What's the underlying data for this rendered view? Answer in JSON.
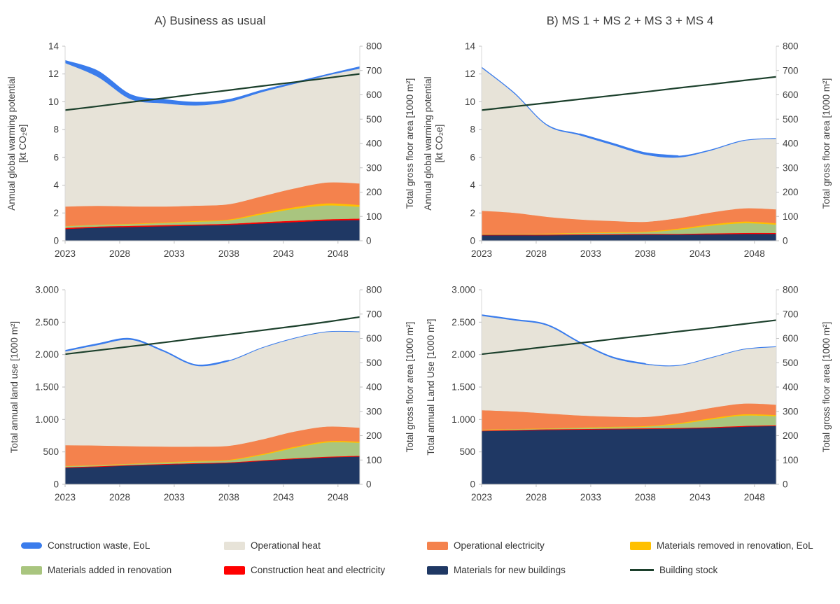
{
  "colors": {
    "text": "#404040",
    "axis": "#bfbfbf",
    "background": "#ffffff"
  },
  "legend": {
    "position": "bottom",
    "items": [
      {
        "label": "Construction waste, EoL",
        "color": "#3a7cec",
        "swatch": "pill"
      },
      {
        "label": "Operational heat",
        "color": "#e7e3d8",
        "swatch": "rect"
      },
      {
        "label": "Operational electricity",
        "color": "#f4824d",
        "swatch": "rect"
      },
      {
        "label": "Materials removed in renovation, EoL",
        "color": "#ffc000",
        "swatch": "rect"
      },
      {
        "label": "Materials added in renovation",
        "color": "#a9c57f",
        "swatch": "rect"
      },
      {
        "label": "Construction heat and electricity",
        "color": "#ff0000",
        "swatch": "rect"
      },
      {
        "label": "Materials for new buildings",
        "color": "#1f3864",
        "swatch": "rect"
      },
      {
        "label": "Building stock",
        "color": "#1c402c",
        "swatch": "line"
      }
    ]
  },
  "chart_data": [
    {
      "type": "area",
      "title": "A) Business as usual",
      "x": [
        2023,
        2026,
        2029,
        2032,
        2035,
        2038,
        2041,
        2044,
        2047,
        2050
      ],
      "xlim": [
        2023,
        2050
      ],
      "x_ticks": [
        2023,
        2028,
        2033,
        2038,
        2043,
        2048
      ],
      "ylabel_left_lines": [
        "Annual global warming potential",
        "[kt CO₂e]"
      ],
      "ylabel_right": "Total gross floor area [1000 m²]",
      "ylim_left": [
        0,
        14
      ],
      "ytick_step_left": 2,
      "ytick_format_left": "plain",
      "ylim_right": [
        0,
        800
      ],
      "ytick_step_right": 100,
      "grid": false,
      "stack_series": [
        {
          "name": "Materials for new buildings",
          "color": "#1f3864",
          "values": [
            0.85,
            0.95,
            1.0,
            1.05,
            1.1,
            1.15,
            1.25,
            1.35,
            1.45,
            1.5
          ]
        },
        {
          "name": "Construction heat and electricity",
          "color": "#ff0000",
          "values": [
            0.08,
            0.08,
            0.08,
            0.08,
            0.08,
            0.08,
            0.1,
            0.1,
            0.1,
            0.1
          ]
        },
        {
          "name": "Materials added in renovation",
          "color": "#a9c57f",
          "values": [
            0.12,
            0.12,
            0.12,
            0.15,
            0.2,
            0.25,
            0.55,
            0.85,
            1.0,
            0.85
          ]
        },
        {
          "name": "Materials removed in renovation, EoL",
          "color": "#ffc000",
          "values": [
            0.02,
            0.02,
            0.03,
            0.04,
            0.05,
            0.06,
            0.1,
            0.12,
            0.15,
            0.13
          ]
        },
        {
          "name": "Operational electricity",
          "color": "#f4824d",
          "values": [
            1.4,
            1.35,
            1.25,
            1.15,
            1.1,
            1.1,
            1.2,
            1.35,
            1.5,
            1.55
          ]
        },
        {
          "name": "Operational heat",
          "color": "#e7e3d8",
          "values": [
            10.33,
            9.28,
            7.72,
            7.43,
            7.22,
            7.36,
            7.5,
            7.53,
            7.7,
            8.27
          ]
        },
        {
          "name": "Construction waste, EoL",
          "color": "#3a7cec",
          "values": [
            0.15,
            0.4,
            0.3,
            0.25,
            0.2,
            0.15,
            0.1,
            0.08,
            0.05,
            0.1
          ],
          "stroke_top": true,
          "stroke_top_min": 0
        }
      ],
      "line_series": [
        {
          "name": "Building stock",
          "axis": "right",
          "color": "#1c402c",
          "values": [
            537,
            553,
            570,
            586,
            603,
            619,
            636,
            652,
            669,
            686
          ]
        }
      ]
    },
    {
      "type": "area",
      "title": "B) MS 1 + MS 2 + MS 3 + MS 4",
      "x": [
        2023,
        2026,
        2029,
        2032,
        2035,
        2038,
        2041,
        2044,
        2047,
        2050
      ],
      "xlim": [
        2023,
        2050
      ],
      "x_ticks": [
        2023,
        2028,
        2033,
        2038,
        2043,
        2048
      ],
      "ylabel_left_lines": [
        "Annual global warming potential",
        "[kt CO₂e]"
      ],
      "ylabel_right": "Total gross floor area [1000 m²]",
      "ylim_left": [
        0,
        14
      ],
      "ytick_step_left": 2,
      "ytick_format_left": "plain",
      "ylim_right": [
        0,
        800
      ],
      "ytick_step_right": 100,
      "grid": false,
      "stack_series": [
        {
          "name": "Materials for new buildings",
          "color": "#1f3864",
          "values": [
            0.4,
            0.4,
            0.4,
            0.42,
            0.43,
            0.45,
            0.45,
            0.47,
            0.5,
            0.5
          ]
        },
        {
          "name": "Construction heat and electricity",
          "color": "#ff0000",
          "values": [
            0.05,
            0.05,
            0.05,
            0.05,
            0.05,
            0.05,
            0.05,
            0.07,
            0.07,
            0.07
          ]
        },
        {
          "name": "Materials added in renovation",
          "color": "#a9c57f",
          "values": [
            0.05,
            0.05,
            0.05,
            0.08,
            0.1,
            0.12,
            0.3,
            0.55,
            0.7,
            0.6
          ]
        },
        {
          "name": "Materials removed in renovation, EoL",
          "color": "#ffc000",
          "values": [
            0.02,
            0.02,
            0.03,
            0.04,
            0.05,
            0.05,
            0.08,
            0.1,
            0.12,
            0.1
          ]
        },
        {
          "name": "Operational electricity",
          "color": "#f4824d",
          "values": [
            1.65,
            1.5,
            1.2,
            0.95,
            0.8,
            0.7,
            0.75,
            0.85,
            0.95,
            1.0
          ]
        },
        {
          "name": "Operational heat",
          "color": "#e7e3d8",
          "values": [
            10.28,
            8.58,
            6.57,
            6.06,
            5.47,
            4.83,
            4.37,
            4.46,
            4.86,
            5.08
          ]
        },
        {
          "name": "Construction waste, EoL",
          "color": "#3a7cec",
          "values": [
            0.05,
            0.05,
            0.05,
            0.08,
            0.1,
            0.12,
            0.1,
            0.05,
            0.03,
            0.03
          ],
          "stroke_top": true,
          "stroke_top_min": 0.06
        }
      ],
      "line_series": [
        {
          "name": "Building stock",
          "axis": "right",
          "color": "#1c402c",
          "values": [
            537,
            552,
            567,
            582,
            597,
            612,
            628,
            643,
            659,
            674
          ]
        }
      ]
    },
    {
      "type": "area",
      "x": [
        2023,
        2026,
        2029,
        2032,
        2035,
        2038,
        2041,
        2044,
        2047,
        2050
      ],
      "xlim": [
        2023,
        2050
      ],
      "x_ticks": [
        2023,
        2028,
        2033,
        2038,
        2043,
        2048
      ],
      "ylabel_left_lines": [
        "Total annual land use [1000 m²]"
      ],
      "ylabel_right": "Total gross floor area [1000 m²]",
      "ylim_left": [
        0,
        3000
      ],
      "ytick_step_left": 500,
      "ytick_format_left": "thousands-dot",
      "ylim_right": [
        0,
        800
      ],
      "ytick_step_right": 100,
      "grid": false,
      "stack_series": [
        {
          "name": "Materials for new buildings",
          "color": "#1f3864",
          "values": [
            255,
            270,
            290,
            305,
            318,
            330,
            360,
            390,
            415,
            430
          ]
        },
        {
          "name": "Construction heat and electricity",
          "color": "#ff0000",
          "values": [
            10,
            10,
            10,
            10,
            10,
            10,
            12,
            12,
            12,
            12
          ]
        },
        {
          "name": "Materials added in renovation",
          "color": "#a9c57f",
          "values": [
            15,
            15,
            15,
            20,
            25,
            30,
            80,
            160,
            220,
            200
          ]
        },
        {
          "name": "Materials removed in renovation, EoL",
          "color": "#ffc000",
          "values": [
            5,
            5,
            5,
            8,
            10,
            10,
            15,
            18,
            20,
            18
          ]
        },
        {
          "name": "Operational electricity",
          "color": "#f4824d",
          "values": [
            320,
            300,
            270,
            240,
            220,
            215,
            225,
            235,
            225,
            215
          ]
        },
        {
          "name": "Operational heat",
          "color": "#e7e3d8",
          "values": [
            1445,
            1550,
            1640,
            1467,
            1247,
            1305,
            1408,
            1435,
            1458,
            1475
          ]
        },
        {
          "name": "Construction waste, EoL",
          "color": "#3a7cec",
          "values": [
            10,
            15,
            15,
            10,
            10,
            8,
            5,
            5,
            5,
            5
          ],
          "stroke_top": true,
          "stroke_top_min": 7
        }
      ],
      "line_series": [
        {
          "name": "Building stock",
          "axis": "right",
          "color": "#1c402c",
          "values": [
            535,
            551,
            567,
            583,
            600,
            616,
            633,
            650,
            668,
            688
          ]
        }
      ]
    },
    {
      "type": "area",
      "x": [
        2023,
        2026,
        2029,
        2032,
        2035,
        2038,
        2041,
        2044,
        2047,
        2050
      ],
      "xlim": [
        2023,
        2050
      ],
      "x_ticks": [
        2023,
        2028,
        2033,
        2038,
        2043,
        2048
      ],
      "ylabel_left_lines": [
        "Total annual Land Use [1000 m²]"
      ],
      "ylabel_right": "Total gross floor area [1000 m²]",
      "ylim_left": [
        0,
        3000
      ],
      "ytick_step_left": 500,
      "ytick_format_left": "thousands-dot",
      "ylim_right": [
        0,
        800
      ],
      "ytick_step_right": 100,
      "grid": false,
      "stack_series": [
        {
          "name": "Materials for new buildings",
          "color": "#1f3864",
          "values": [
            820,
            830,
            840,
            845,
            850,
            855,
            860,
            870,
            890,
            900
          ]
        },
        {
          "name": "Construction heat and electricity",
          "color": "#ff0000",
          "values": [
            10,
            10,
            10,
            10,
            10,
            10,
            10,
            12,
            12,
            12
          ]
        },
        {
          "name": "Materials added in renovation",
          "color": "#a9c57f",
          "values": [
            10,
            10,
            10,
            15,
            20,
            25,
            60,
            120,
            160,
            140
          ]
        },
        {
          "name": "Materials removed in renovation, EoL",
          "color": "#ffc000",
          "values": [
            5,
            5,
            5,
            8,
            10,
            10,
            15,
            18,
            20,
            18
          ]
        },
        {
          "name": "Operational electricity",
          "color": "#f4824d",
          "values": [
            300,
            270,
            230,
            185,
            155,
            140,
            150,
            160,
            165,
            160
          ]
        },
        {
          "name": "Operational heat",
          "color": "#e7e3d8",
          "values": [
            1455,
            1405,
            1355,
            1117,
            905,
            810,
            735,
            770,
            833,
            890
          ]
        },
        {
          "name": "Construction waste, EoL",
          "color": "#3a7cec",
          "values": [
            10,
            10,
            10,
            10,
            10,
            8,
            5,
            5,
            5,
            5
          ],
          "stroke_top": true,
          "stroke_top_min": 7
        }
      ],
      "line_series": [
        {
          "name": "Building stock",
          "axis": "right",
          "color": "#1c402c",
          "values": [
            535,
            550,
            566,
            581,
            597,
            612,
            628,
            643,
            659,
            675
          ]
        }
      ]
    }
  ]
}
